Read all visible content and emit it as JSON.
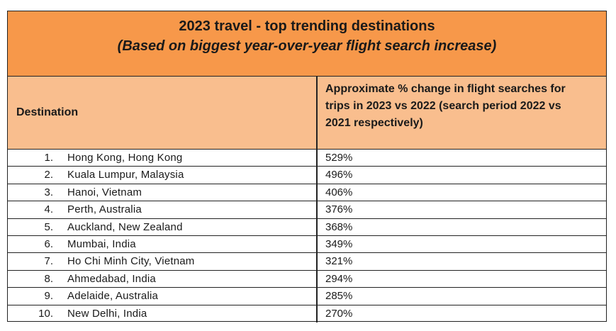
{
  "table": {
    "title": "2023 travel - top trending destinations",
    "subtitle": "(Based on biggest year-over-year flight search increase)",
    "headers": {
      "destination": "Destination",
      "change": "Approximate % change in flight searches for trips in 2023 vs 2022 (search period 2022 vs 2021 respectively)"
    },
    "rows": [
      {
        "rank": "1.",
        "destination": "Hong Kong, Hong Kong",
        "change": "529%"
      },
      {
        "rank": "2.",
        "destination": "Kuala Lumpur, Malaysia",
        "change": "496%"
      },
      {
        "rank": "3.",
        "destination": "Hanoi, Vietnam",
        "change": "406%"
      },
      {
        "rank": "4.",
        "destination": "Perth, Australia",
        "change": "376%"
      },
      {
        "rank": "5.",
        "destination": "Auckland, New Zealand",
        "change": "368%"
      },
      {
        "rank": "6.",
        "destination": "Mumbai, India",
        "change": "349%"
      },
      {
        "rank": "7.",
        "destination": "Ho Chi Minh City, Vietnam",
        "change": "321%"
      },
      {
        "rank": "8.",
        "destination": "Ahmedabad, India",
        "change": "294%"
      },
      {
        "rank": "9.",
        "destination": "Adelaide, Australia",
        "change": "285%"
      },
      {
        "rank": "10.",
        "destination": "New Delhi, India",
        "change": "270%"
      }
    ]
  },
  "colors": {
    "title_band": "#f7984a",
    "header_band": "#f9be8e",
    "border": "#222222"
  }
}
